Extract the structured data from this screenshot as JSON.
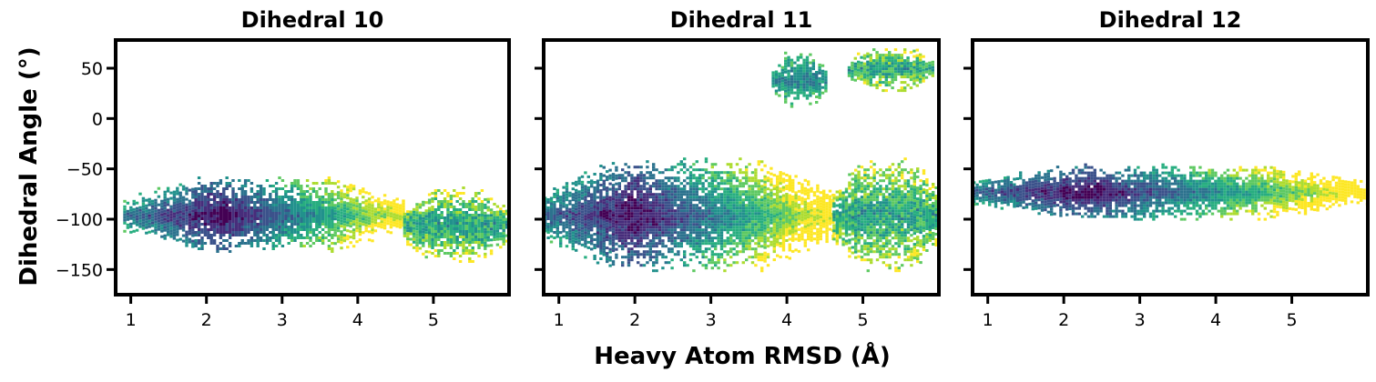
{
  "figure": {
    "xlabel": "Heavy Atom RMSD (Å)",
    "ylabel": "Dihedral Angle (°)",
    "colormap": [
      "#440154",
      "#472d7b",
      "#3b528b",
      "#2c728e",
      "#21918c",
      "#28ae80",
      "#5ec962",
      "#addc30",
      "#fde725"
    ]
  },
  "chart_data": [
    {
      "type": "heatmap",
      "title": "Dihedral 10",
      "xlim": [
        0.8,
        6.0
      ],
      "ylim": [
        -175,
        78
      ],
      "xticks": [
        1,
        2,
        3,
        4,
        5
      ],
      "yticks": [
        50,
        0,
        -50,
        -100,
        -150
      ],
      "show_yticklabels": true,
      "clusters": [
        {
          "x_range": [
            0.9,
            4.6
          ],
          "y_center": -95,
          "y_halfwidth": 30,
          "density_center_x": 2.2,
          "value": "high"
        },
        {
          "x_range": [
            4.6,
            6.0
          ],
          "y_center": -105,
          "y_halfwidth": 30,
          "value": "low"
        }
      ]
    },
    {
      "type": "heatmap",
      "title": "Dihedral 11",
      "xlim": [
        0.8,
        6.0
      ],
      "ylim": [
        -175,
        78
      ],
      "xticks": [
        1,
        2,
        3,
        4,
        5
      ],
      "yticks": [
        50,
        0,
        -50,
        -100,
        -150
      ],
      "show_yticklabels": false,
      "clusters": [
        {
          "x_range": [
            0.8,
            4.6
          ],
          "y_center": -95,
          "y_halfwidth": 45,
          "density_center_x": 2.0,
          "value": "high"
        },
        {
          "x_range": [
            4.6,
            6.0
          ],
          "y_center": -95,
          "y_halfwidth": 45,
          "value": "low"
        },
        {
          "x_range": [
            3.8,
            4.5
          ],
          "y_center": 40,
          "y_halfwidth": 22,
          "value": "medium"
        },
        {
          "x_range": [
            4.8,
            5.9
          ],
          "y_center": 50,
          "y_halfwidth": 18,
          "value": "low"
        }
      ]
    },
    {
      "type": "heatmap",
      "title": "Dihedral 12",
      "xlim": [
        0.8,
        6.0
      ],
      "ylim": [
        -175,
        78
      ],
      "xticks": [
        1,
        2,
        3,
        4,
        5
      ],
      "yticks": [
        50,
        0,
        -50,
        -100,
        -150
      ],
      "show_yticklabels": false,
      "clusters": [
        {
          "x_range": [
            0.8,
            6.0
          ],
          "y_center": -72,
          "y_halfwidth": 22,
          "density_center_x": 2.3,
          "value": "high"
        }
      ]
    }
  ]
}
